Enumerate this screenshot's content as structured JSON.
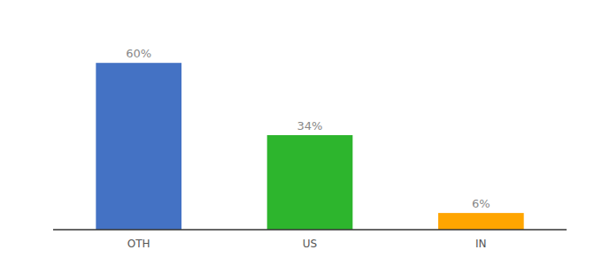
{
  "chart_data": {
    "type": "bar",
    "categories": [
      "OTH",
      "US",
      "IN"
    ],
    "values": [
      60,
      34,
      6
    ],
    "value_labels": [
      "60%",
      "34%",
      "6%"
    ],
    "colors": [
      "#4472c4",
      "#2db52d",
      "#ffa500"
    ],
    "ylim": [
      0,
      75
    ],
    "data_labels": true,
    "tick_labels": "x",
    "grid": false
  }
}
